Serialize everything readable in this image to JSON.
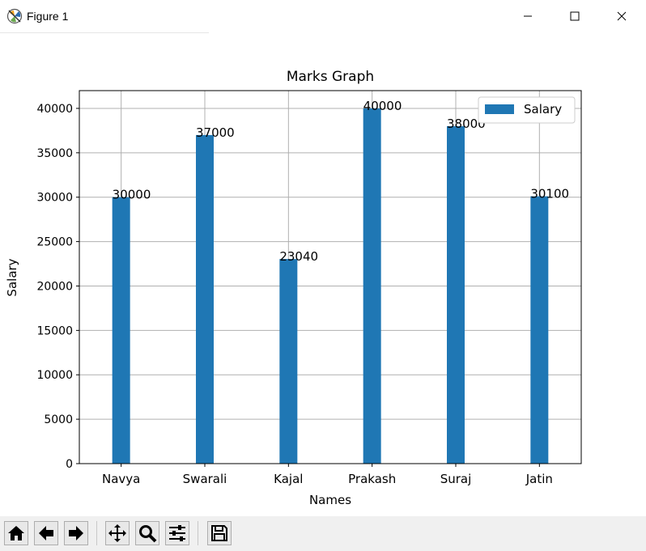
{
  "window": {
    "title": "Figure 1"
  },
  "toolbar": {
    "buttons": [
      "home-icon",
      "back-arrow-icon",
      "forward-arrow-icon",
      "pan-icon",
      "zoom-icon",
      "configure-subplots-icon",
      "save-icon"
    ]
  },
  "colors": {
    "bar": "#1f77b4",
    "grid": "#b0b0b0"
  },
  "chart_data": {
    "type": "bar",
    "title": "Marks Graph",
    "xlabel": "Names",
    "ylabel": "Salary",
    "categories": [
      "Navya",
      "Swarali",
      "Kajal",
      "Prakash",
      "Suraj",
      "Jatin"
    ],
    "series": [
      {
        "name": "Salary",
        "values": [
          30000,
          37000,
          23040,
          40000,
          38000,
          30100
        ]
      }
    ],
    "data_labels": [
      "30000",
      "37000",
      "23040",
      "40000",
      "38000",
      "30100"
    ],
    "ylim": [
      0,
      42000
    ],
    "yticks": [
      0,
      5000,
      10000,
      15000,
      20000,
      25000,
      30000,
      35000,
      40000
    ],
    "ytick_labels": [
      "0",
      "5000",
      "10000",
      "15000",
      "20000",
      "25000",
      "30000",
      "35000",
      "40000"
    ],
    "grid": true,
    "legend": {
      "position": "top-right",
      "entries": [
        "Salary"
      ]
    }
  }
}
